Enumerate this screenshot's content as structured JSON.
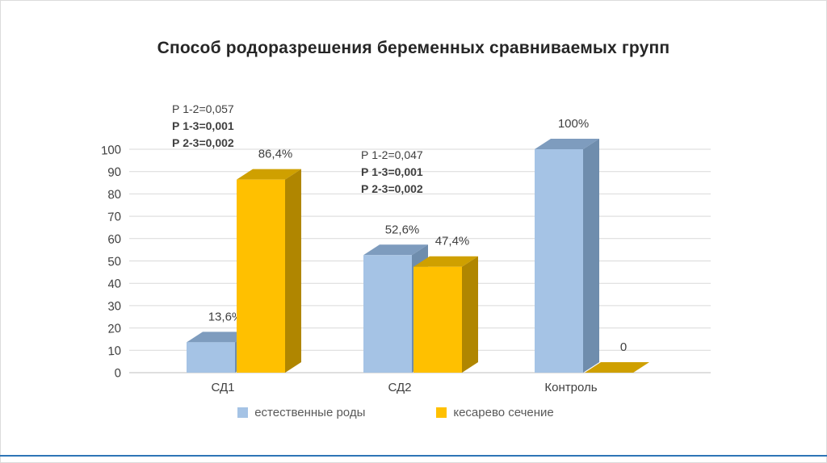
{
  "title": "Способ родоразрешения беременных сравниваемых групп",
  "accent": {
    "footer_line_color": "#2E75B6"
  },
  "chart_data": {
    "type": "bar",
    "style": "3d-clustered",
    "title": "Способ родоразрешения беременных сравниваемых групп",
    "categories": [
      "СД1",
      "СД2",
      "Контроль"
    ],
    "series": [
      {
        "name": "естественные роды",
        "color": "#A5C3E5",
        "top_color": "#7E9CBE",
        "side_color": "#6F8DAD",
        "values": [
          13.6,
          52.6,
          100
        ]
      },
      {
        "name": "кесарево сечение",
        "color": "#FFC000",
        "top_color": "#CFA000",
        "side_color": "#B08600",
        "values": [
          86.4,
          47.4,
          0
        ]
      }
    ],
    "value_labels": [
      [
        "13,6%",
        "52,6%",
        "100%"
      ],
      [
        "86,4%",
        "47,4%",
        "0"
      ]
    ],
    "ylim": [
      0,
      100
    ],
    "ytick_step": 10,
    "yticks": [
      "0",
      "10",
      "20",
      "30",
      "40",
      "50",
      "60",
      "70",
      "80",
      "90",
      "100"
    ],
    "grid": true,
    "legend_position": "bottom",
    "annotations": [
      {
        "near_category": "СД1",
        "lines": [
          {
            "text": "Р 1-2=0,057",
            "bold": false
          },
          {
            "text": "Р 1-3=0,001",
            "bold": true
          },
          {
            "text": "Р 2-3=0,002",
            "bold": true
          }
        ]
      },
      {
        "near_category": "СД2",
        "lines": [
          {
            "text": "Р 1-2=0,047",
            "bold": false
          },
          {
            "text": "Р 1-3=0,001",
            "bold": true
          },
          {
            "text": "Р 2-3=0,002",
            "bold": true
          }
        ]
      }
    ]
  }
}
